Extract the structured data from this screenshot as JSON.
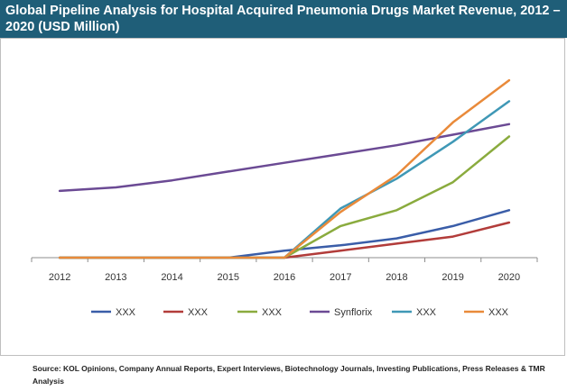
{
  "header": {
    "title": "Global Pipeline Analysis for Hospital Acquired Pneumonia Drugs Market Revenue, 2012 – 2020 (USD Million)"
  },
  "chart_data": {
    "type": "line",
    "title": "Global Pipeline Analysis for Hospital Acquired Pneumonia Drugs Market Revenue, 2012 – 2020 (USD Million)",
    "xlabel": "",
    "ylabel": "",
    "categories": [
      "2012",
      "2013",
      "2014",
      "2015",
      "2016",
      "2017",
      "2018",
      "2019",
      "2020"
    ],
    "ylim": [
      0,
      100
    ],
    "grid": false,
    "legend": "bottom",
    "series": [
      {
        "name": "XXX",
        "color": "#3a5da8",
        "values": [
          0,
          0,
          0,
          0,
          4,
          7,
          11,
          18,
          27
        ]
      },
      {
        "name": "XXX",
        "color": "#b23c3a",
        "values": [
          0,
          0,
          0,
          0,
          0,
          4,
          8,
          12,
          20
        ]
      },
      {
        "name": "XXX",
        "color": "#8aab3e",
        "values": [
          0,
          0,
          0,
          0,
          0,
          18,
          27,
          43,
          69
        ]
      },
      {
        "name": "Synflorix",
        "color": "#6b4a94",
        "values": [
          38,
          40,
          44,
          49,
          54,
          59,
          64,
          70,
          76
        ]
      },
      {
        "name": "XXX",
        "color": "#3f98b6",
        "values": [
          0,
          0,
          0,
          0,
          0,
          28,
          45,
          66,
          89
        ]
      },
      {
        "name": "XXX",
        "color": "#e98a3a",
        "values": [
          0,
          0,
          0,
          0,
          0,
          26,
          47,
          77,
          101
        ]
      }
    ]
  },
  "footer": {
    "source": "Source: KOL Opinions, Company Annual Reports, Expert Interviews, Biotechnology Journals, Investing Publications, Press Releases & TMR Analysis"
  }
}
